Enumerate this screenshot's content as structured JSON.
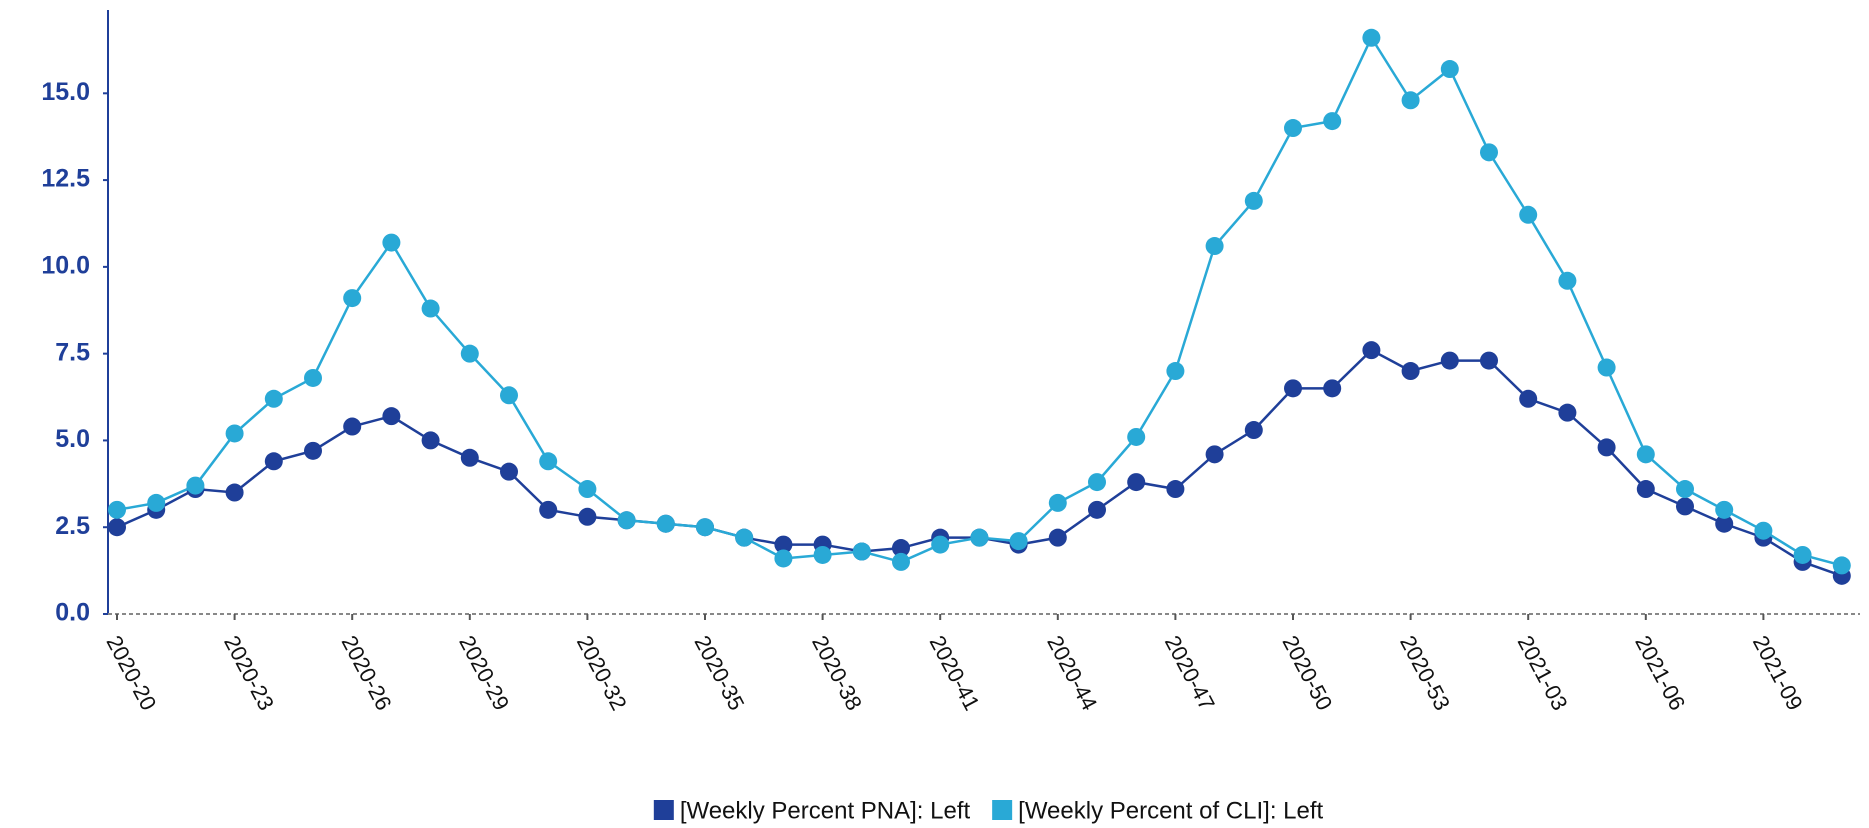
{
  "chart_data": {
    "type": "line",
    "categories": [
      "2020-20",
      null,
      null,
      "2020-23",
      null,
      null,
      "2020-26",
      null,
      null,
      "2020-29",
      null,
      null,
      "2020-32",
      null,
      null,
      "2020-35",
      null,
      null,
      "2020-38",
      null,
      null,
      "2020-41",
      null,
      null,
      "2020-44",
      null,
      null,
      "2020-47",
      null,
      null,
      "2020-50",
      null,
      null,
      "2020-53",
      null,
      null,
      "2021-03",
      null,
      null,
      "2021-06",
      null,
      null,
      "2021-09",
      null,
      null
    ],
    "series": [
      {
        "name": "[Weekly Percent PNA]: Left",
        "color": "#1f3f99",
        "values": [
          2.5,
          3.0,
          3.6,
          3.5,
          4.4,
          4.7,
          5.4,
          5.7,
          5.0,
          4.5,
          4.1,
          3.0,
          2.8,
          2.7,
          2.6,
          2.5,
          2.2,
          2.0,
          2.0,
          1.8,
          1.9,
          2.2,
          2.2,
          2.0,
          2.2,
          3.0,
          3.8,
          3.6,
          4.6,
          5.3,
          6.5,
          6.5,
          7.6,
          7.0,
          7.3,
          7.3,
          6.2,
          5.8,
          4.8,
          3.6,
          3.1,
          2.6,
          2.2,
          1.5,
          1.1
        ]
      },
      {
        "name": "[Weekly Percent of CLI]: Left",
        "color": "#29a9d6",
        "values": [
          3.0,
          3.2,
          3.7,
          5.2,
          6.2,
          6.8,
          9.1,
          10.7,
          8.8,
          7.5,
          6.3,
          4.4,
          3.6,
          2.7,
          2.6,
          2.5,
          2.2,
          1.6,
          1.7,
          1.8,
          1.5,
          2.0,
          2.2,
          2.1,
          3.2,
          3.8,
          5.1,
          7.0,
          10.6,
          11.9,
          14.0,
          14.2,
          16.6,
          14.8,
          15.7,
          13.3,
          11.5,
          9.6,
          7.1,
          4.6,
          3.6,
          3.0,
          2.4,
          1.7,
          1.4
        ]
      }
    ],
    "ylim": [
      0,
      17.4
    ],
    "yticks": [
      {
        "value": 0,
        "label": "0.0"
      },
      2.5,
      {
        "value": 5,
        "label": "5.0"
      },
      7.5,
      {
        "value": 10,
        "label": "10.0"
      },
      12.5,
      {
        "value": 15,
        "label": "15.0"
      }
    ],
    "legend": "bottom"
  }
}
